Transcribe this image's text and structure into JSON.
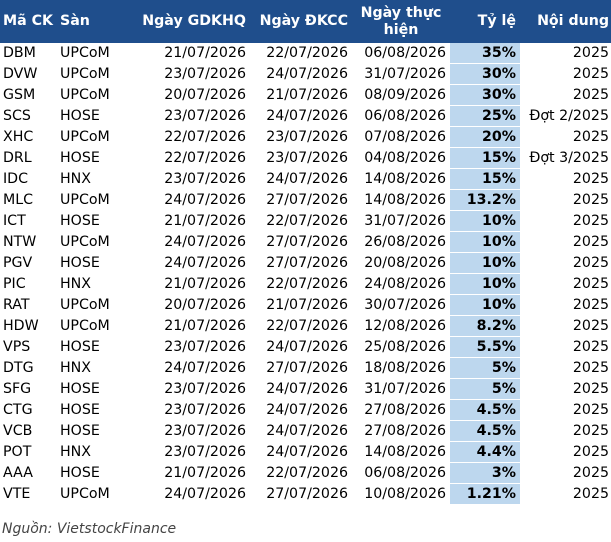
{
  "headers": {
    "code": "Mã CK",
    "floor": "Sàn",
    "ex_date": "Ngày GDKHQ",
    "record_date": "Ngày ĐKCC",
    "pay_date": "Ngày thực hiện",
    "rate": "Tỷ lệ",
    "content": "Nội dung"
  },
  "rows": [
    {
      "code": "DBM",
      "floor": "UPCoM",
      "ex_date": "21/07/2026",
      "record_date": "22/07/2026",
      "pay_date": "06/08/2026",
      "rate": "35%",
      "content": "2025"
    },
    {
      "code": "DVW",
      "floor": "UPCoM",
      "ex_date": "23/07/2026",
      "record_date": "24/07/2026",
      "pay_date": "31/07/2026",
      "rate": "30%",
      "content": "2025"
    },
    {
      "code": "GSM",
      "floor": "UPCoM",
      "ex_date": "20/07/2026",
      "record_date": "21/07/2026",
      "pay_date": "08/09/2026",
      "rate": "30%",
      "content": "2025"
    },
    {
      "code": "SCS",
      "floor": "HOSE",
      "ex_date": "23/07/2026",
      "record_date": "24/07/2026",
      "pay_date": "06/08/2026",
      "rate": "25%",
      "content": "Đợt 2/2025"
    },
    {
      "code": "XHC",
      "floor": "UPCoM",
      "ex_date": "22/07/2026",
      "record_date": "23/07/2026",
      "pay_date": "07/08/2026",
      "rate": "20%",
      "content": "2025"
    },
    {
      "code": "DRL",
      "floor": "HOSE",
      "ex_date": "22/07/2026",
      "record_date": "23/07/2026",
      "pay_date": "04/08/2026",
      "rate": "15%",
      "content": "Đợt 3/2025"
    },
    {
      "code": "IDC",
      "floor": "HNX",
      "ex_date": "23/07/2026",
      "record_date": "24/07/2026",
      "pay_date": "14/08/2026",
      "rate": "15%",
      "content": "2025"
    },
    {
      "code": "MLC",
      "floor": "UPCoM",
      "ex_date": "24/07/2026",
      "record_date": "27/07/2026",
      "pay_date": "14/08/2026",
      "rate": "13.2%",
      "content": "2025"
    },
    {
      "code": "ICT",
      "floor": "HOSE",
      "ex_date": "21/07/2026",
      "record_date": "22/07/2026",
      "pay_date": "31/07/2026",
      "rate": "10%",
      "content": "2025"
    },
    {
      "code": "NTW",
      "floor": "UPCoM",
      "ex_date": "24/07/2026",
      "record_date": "27/07/2026",
      "pay_date": "26/08/2026",
      "rate": "10%",
      "content": "2025"
    },
    {
      "code": "PGV",
      "floor": "HOSE",
      "ex_date": "24/07/2026",
      "record_date": "27/07/2026",
      "pay_date": "20/08/2026",
      "rate": "10%",
      "content": "2025"
    },
    {
      "code": "PIC",
      "floor": "HNX",
      "ex_date": "21/07/2026",
      "record_date": "22/07/2026",
      "pay_date": "24/08/2026",
      "rate": "10%",
      "content": "2025"
    },
    {
      "code": "RAT",
      "floor": "UPCoM",
      "ex_date": "20/07/2026",
      "record_date": "21/07/2026",
      "pay_date": "30/07/2026",
      "rate": "10%",
      "content": "2025"
    },
    {
      "code": "HDW",
      "floor": "UPCoM",
      "ex_date": "21/07/2026",
      "record_date": "22/07/2026",
      "pay_date": "12/08/2026",
      "rate": "8.2%",
      "content": "2025"
    },
    {
      "code": "VPS",
      "floor": "HOSE",
      "ex_date": "23/07/2026",
      "record_date": "24/07/2026",
      "pay_date": "25/08/2026",
      "rate": "5.5%",
      "content": "2025"
    },
    {
      "code": "DTG",
      "floor": "HNX",
      "ex_date": "24/07/2026",
      "record_date": "27/07/2026",
      "pay_date": "18/08/2026",
      "rate": "5%",
      "content": "2025"
    },
    {
      "code": "SFG",
      "floor": "HOSE",
      "ex_date": "23/07/2026",
      "record_date": "24/07/2026",
      "pay_date": "31/07/2026",
      "rate": "5%",
      "content": "2025"
    },
    {
      "code": "CTG",
      "floor": "HOSE",
      "ex_date": "23/07/2026",
      "record_date": "24/07/2026",
      "pay_date": "27/08/2026",
      "rate": "4.5%",
      "content": "2025"
    },
    {
      "code": "VCB",
      "floor": "HOSE",
      "ex_date": "23/07/2026",
      "record_date": "24/07/2026",
      "pay_date": "27/08/2026",
      "rate": "4.5%",
      "content": "2025"
    },
    {
      "code": "POT",
      "floor": "HNX",
      "ex_date": "23/07/2026",
      "record_date": "24/07/2026",
      "pay_date": "14/08/2026",
      "rate": "4.4%",
      "content": "2025"
    },
    {
      "code": "AAA",
      "floor": "HOSE",
      "ex_date": "21/07/2026",
      "record_date": "22/07/2026",
      "pay_date": "06/08/2026",
      "rate": "3%",
      "content": "2025"
    },
    {
      "code": "VTE",
      "floor": "UPCoM",
      "ex_date": "24/07/2026",
      "record_date": "27/07/2026",
      "pay_date": "10/08/2026",
      "rate": "1.21%",
      "content": "2025"
    }
  ],
  "source": "Nguồn: VietstockFinance",
  "colors": {
    "header_bg": "#1f4e8c",
    "header_text": "#ffffff",
    "rate_highlight": "#bdd7ee"
  }
}
